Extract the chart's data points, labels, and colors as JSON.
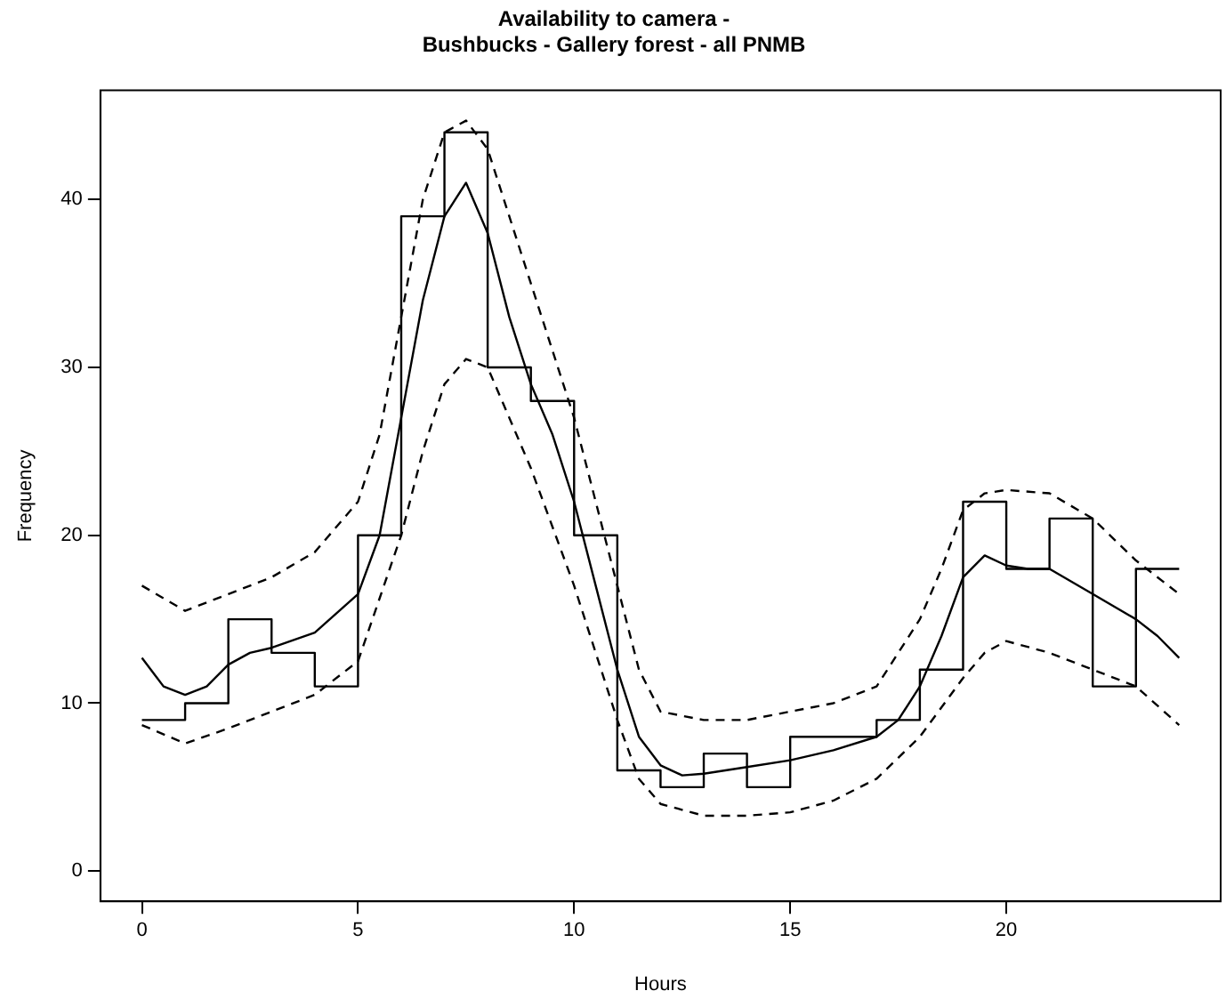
{
  "chart_data": {
    "type": "line",
    "title": "Availability to camera -\nBushbucks - Gallery forest - all PNMB",
    "xlabel": "Hours",
    "ylabel": "Frequency",
    "series": [
      {
        "type": "step",
        "line_style": "solid",
        "color": "#000000",
        "x": [
          0,
          1,
          2,
          3,
          4,
          5,
          6,
          7,
          8,
          9,
          10,
          11,
          12,
          13,
          14,
          15,
          16,
          17,
          18,
          19,
          20,
          21,
          22,
          23,
          24
        ],
        "values": [
          9,
          10,
          15,
          13,
          11,
          20,
          39,
          44,
          30,
          28,
          20,
          6,
          5,
          7,
          5,
          8,
          8,
          9,
          12,
          22,
          18,
          21,
          11,
          18,
          18
        ]
      },
      {
        "line_style": "solid",
        "color": "#000000",
        "x": [
          0,
          0.5,
          1,
          1.5,
          2,
          2.5,
          3,
          4,
          5,
          5.5,
          6,
          6.5,
          7,
          7.5,
          8,
          8.5,
          9,
          9.5,
          10,
          10.5,
          11,
          11.5,
          12,
          12.5,
          13,
          14,
          15,
          16,
          17,
          17.5,
          18,
          18.5,
          19,
          19.5,
          20,
          20.5,
          21,
          22,
          23,
          23.5,
          24
        ],
        "values": [
          12.7,
          11,
          10.5,
          11,
          12.3,
          13,
          13.3,
          14.2,
          16.5,
          20,
          27,
          34,
          39,
          41,
          38,
          33,
          29,
          26,
          22,
          17,
          12,
          8,
          6.3,
          5.7,
          5.8,
          6.2,
          6.6,
          7.2,
          8,
          9,
          11,
          14,
          17.5,
          18.8,
          18.2,
          18,
          18,
          16.5,
          15,
          14,
          12.7
        ]
      },
      {
        "line_style": "dashed",
        "color": "#000000",
        "x": [
          0,
          1,
          2,
          3,
          4,
          5,
          5.5,
          6,
          6.5,
          7,
          7.5,
          8,
          8.5,
          9,
          10,
          11,
          11.5,
          12,
          13,
          14,
          15,
          16,
          17,
          18,
          18.5,
          19,
          19.5,
          20,
          21,
          22,
          23,
          24
        ],
        "values": [
          17,
          15.5,
          16.5,
          17.5,
          19,
          22,
          26,
          33,
          40,
          44,
          44.7,
          43,
          39,
          35,
          27,
          17,
          12,
          9.5,
          9,
          9,
          9.5,
          10,
          11,
          15,
          18,
          21.5,
          22.5,
          22.7,
          22.5,
          21,
          18.5,
          16.5
        ]
      },
      {
        "line_style": "dashed",
        "color": "#000000",
        "x": [
          0,
          1,
          2,
          3,
          4,
          5,
          6,
          6.5,
          7,
          7.5,
          8,
          8.5,
          9,
          10,
          11,
          11.5,
          12,
          13,
          14,
          15,
          16,
          17,
          18,
          19,
          19.5,
          20,
          21,
          22,
          23,
          24
        ],
        "values": [
          8.7,
          7.6,
          8.5,
          9.5,
          10.5,
          12.5,
          20,
          25,
          29,
          30.5,
          30,
          27,
          24,
          17,
          9,
          5.5,
          4,
          3.3,
          3.3,
          3.5,
          4.2,
          5.5,
          8,
          11.5,
          13,
          13.7,
          13,
          12,
          11,
          8.7
        ]
      }
    ],
    "xlim": [
      -0.96,
      24.96
    ],
    "xticks": [
      0,
      5,
      10,
      15,
      20
    ],
    "ylim": [
      -1.8,
      46.5
    ],
    "yticks": [
      0,
      10,
      20,
      30,
      40
    ],
    "grid": false,
    "legend": false
  }
}
